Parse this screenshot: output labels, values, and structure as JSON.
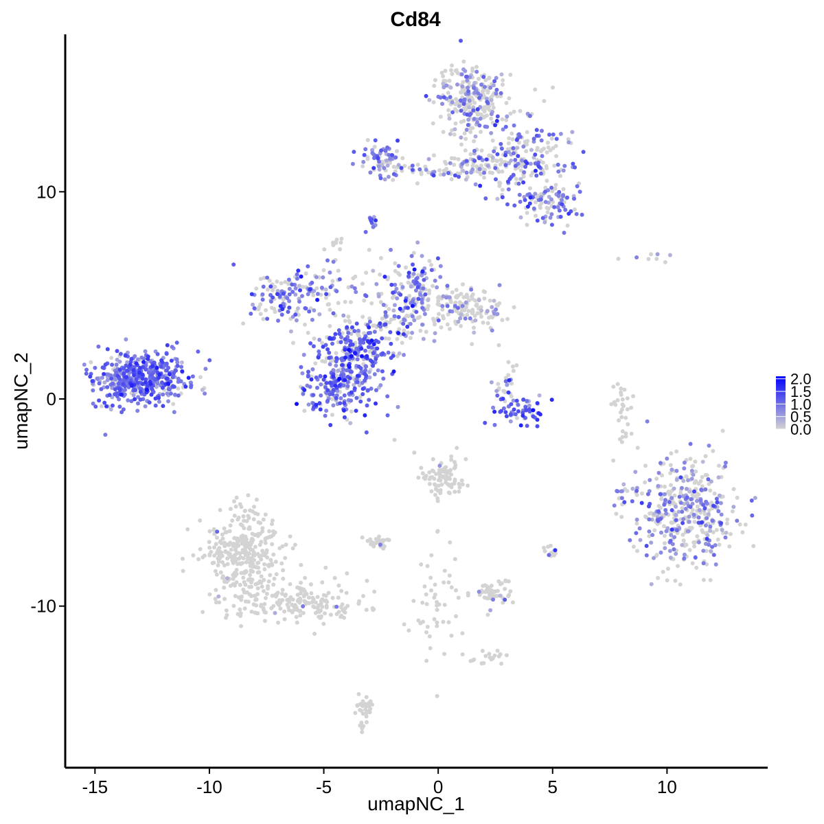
{
  "chart_data": {
    "type": "scatter",
    "title": "Cd84",
    "xlabel": "umapNC_1",
    "ylabel": "umapNC_2",
    "xlim": [
      -16.3,
      14.4
    ],
    "ylim": [
      -17.8,
      17.6
    ],
    "x_ticks": [
      -15,
      -10,
      -5,
      0,
      5,
      10
    ],
    "y_ticks": [
      -10,
      0,
      10
    ],
    "x_tick_labels": [
      "-15",
      "-10",
      "-5",
      "0",
      "5",
      "10"
    ],
    "y_tick_labels": [
      "-10",
      "0",
      "10"
    ],
    "grid": false,
    "colorscale": {
      "low_color": "#d3d3d3",
      "high_color": "#0000ff",
      "min": 0.0,
      "max": 2.1,
      "ticks": [
        0.0,
        0.5,
        1.0,
        1.5,
        2.0
      ],
      "tick_labels": [
        "0.0",
        "0.5",
        "1.0",
        "1.5",
        "2.0"
      ],
      "legend_position": "right"
    },
    "clusters": [
      {
        "cx": -13.0,
        "cy": 1.0,
        "sx": 1.0,
        "sy": 0.65,
        "n": 480,
        "expr_frac": 0.88,
        "expr_mean": 0.95
      },
      {
        "cx": 1.5,
        "cy": 14.5,
        "sx": 0.8,
        "sy": 0.9,
        "n": 260,
        "expr_frac": 0.35,
        "expr_mean": 0.8
      },
      {
        "cx": 3.7,
        "cy": 11.5,
        "sx": 1.1,
        "sy": 0.9,
        "n": 200,
        "expr_frac": 0.5,
        "expr_mean": 0.95
      },
      {
        "cx": 5.0,
        "cy": 9.5,
        "sx": 0.7,
        "sy": 0.5,
        "n": 90,
        "expr_frac": 0.45,
        "expr_mean": 0.9
      },
      {
        "cx": -2.5,
        "cy": 11.5,
        "sx": 0.5,
        "sy": 0.4,
        "n": 70,
        "expr_frac": 0.55,
        "expr_mean": 0.9
      },
      {
        "cx": -0.5,
        "cy": 11.0,
        "sx": 1.0,
        "sy": 0.2,
        "n": 40,
        "expr_frac": 0.4,
        "expr_mean": 0.8
      },
      {
        "cx": 1.5,
        "cy": 11.2,
        "sx": 0.8,
        "sy": 0.5,
        "n": 60,
        "expr_frac": 0.25,
        "expr_mean": 0.7
      },
      {
        "cx": -2.8,
        "cy": 8.6,
        "sx": 0.15,
        "sy": 0.15,
        "n": 10,
        "expr_frac": 0.9,
        "expr_mean": 1.0
      },
      {
        "cx": -6.5,
        "cy": 5.0,
        "sx": 0.8,
        "sy": 0.6,
        "n": 110,
        "expr_frac": 0.7,
        "expr_mean": 0.9
      },
      {
        "cx": -4.3,
        "cy": 0.8,
        "sx": 1.0,
        "sy": 0.9,
        "n": 260,
        "expr_frac": 0.8,
        "expr_mean": 1.0
      },
      {
        "cx": -3.5,
        "cy": 2.5,
        "sx": 0.7,
        "sy": 0.6,
        "n": 150,
        "expr_frac": 0.7,
        "expr_mean": 1.2
      },
      {
        "cx": -1.0,
        "cy": 5.5,
        "sx": 0.6,
        "sy": 0.8,
        "n": 100,
        "expr_frac": 0.55,
        "expr_mean": 0.9
      },
      {
        "cx": 1.0,
        "cy": 4.3,
        "sx": 1.0,
        "sy": 0.5,
        "n": 150,
        "expr_frac": 0.25,
        "expr_mean": 0.7
      },
      {
        "cx": -4.5,
        "cy": 5.0,
        "sx": 1.5,
        "sy": 1.2,
        "n": 80,
        "expr_frac": 0.35,
        "expr_mean": 0.8
      },
      {
        "cx": -1.8,
        "cy": 3.8,
        "sx": 0.6,
        "sy": 0.7,
        "n": 90,
        "expr_frac": 0.45,
        "expr_mean": 0.9
      },
      {
        "cx": 3.5,
        "cy": -0.6,
        "sx": 0.6,
        "sy": 0.35,
        "n": 60,
        "expr_frac": 0.85,
        "expr_mean": 1.2
      },
      {
        "cx": 3.0,
        "cy": 0.6,
        "sx": 0.3,
        "sy": 0.6,
        "n": 30,
        "expr_frac": 0.4,
        "expr_mean": 0.8
      },
      {
        "cx": 10.8,
        "cy": -5.5,
        "sx": 1.1,
        "sy": 1.3,
        "n": 420,
        "expr_frac": 0.45,
        "expr_mean": 0.75
      },
      {
        "cx": -8.5,
        "cy": -7.5,
        "sx": 0.9,
        "sy": 1.1,
        "n": 330,
        "expr_frac": 0.01,
        "expr_mean": 0.6
      },
      {
        "cx": -6.0,
        "cy": -9.8,
        "sx": 1.5,
        "sy": 0.5,
        "n": 180,
        "expr_frac": 0.01,
        "expr_mean": 0.6
      },
      {
        "cx": 0.2,
        "cy": -3.7,
        "sx": 0.5,
        "sy": 0.55,
        "n": 90,
        "expr_frac": 0.01,
        "expr_mean": 0.6
      },
      {
        "cx": 2.4,
        "cy": -9.3,
        "sx": 0.4,
        "sy": 0.35,
        "n": 50,
        "expr_frac": 0.02,
        "expr_mean": 0.6
      },
      {
        "cx": -2.6,
        "cy": -6.9,
        "sx": 0.3,
        "sy": 0.2,
        "n": 25,
        "expr_frac": 0.04,
        "expr_mean": 0.6
      },
      {
        "cx": -3.2,
        "cy": -15.0,
        "sx": 0.2,
        "sy": 0.5,
        "n": 35,
        "expr_frac": 0.0,
        "expr_mean": 0.5
      },
      {
        "cx": 0.0,
        "cy": -10.0,
        "sx": 0.6,
        "sy": 1.6,
        "n": 50,
        "expr_frac": 0.0,
        "expr_mean": 0.5
      },
      {
        "cx": 2.3,
        "cy": -12.5,
        "sx": 0.5,
        "sy": 0.2,
        "n": 20,
        "expr_frac": 0.0,
        "expr_mean": 0.5
      },
      {
        "cx": 8.1,
        "cy": -0.5,
        "sx": 0.2,
        "sy": 0.8,
        "n": 30,
        "expr_frac": 0.05,
        "expr_mean": 0.6
      },
      {
        "cx": 4.9,
        "cy": -7.4,
        "sx": 0.15,
        "sy": 0.12,
        "n": 12,
        "expr_frac": 0.4,
        "expr_mean": 0.9
      },
      {
        "cx": 8.0,
        "cy": -4.8,
        "sx": 0.2,
        "sy": 0.4,
        "n": 14,
        "expr_frac": 0.25,
        "expr_mean": 0.7
      },
      {
        "cx": -4.5,
        "cy": 7.5,
        "sx": 0.15,
        "sy": 0.15,
        "n": 8,
        "expr_frac": 0.0,
        "expr_mean": 0.5
      },
      {
        "cx": 9.2,
        "cy": 6.8,
        "sx": 0.6,
        "sy": 0.15,
        "n": 8,
        "expr_frac": 0.2,
        "expr_mean": 0.8
      }
    ]
  }
}
